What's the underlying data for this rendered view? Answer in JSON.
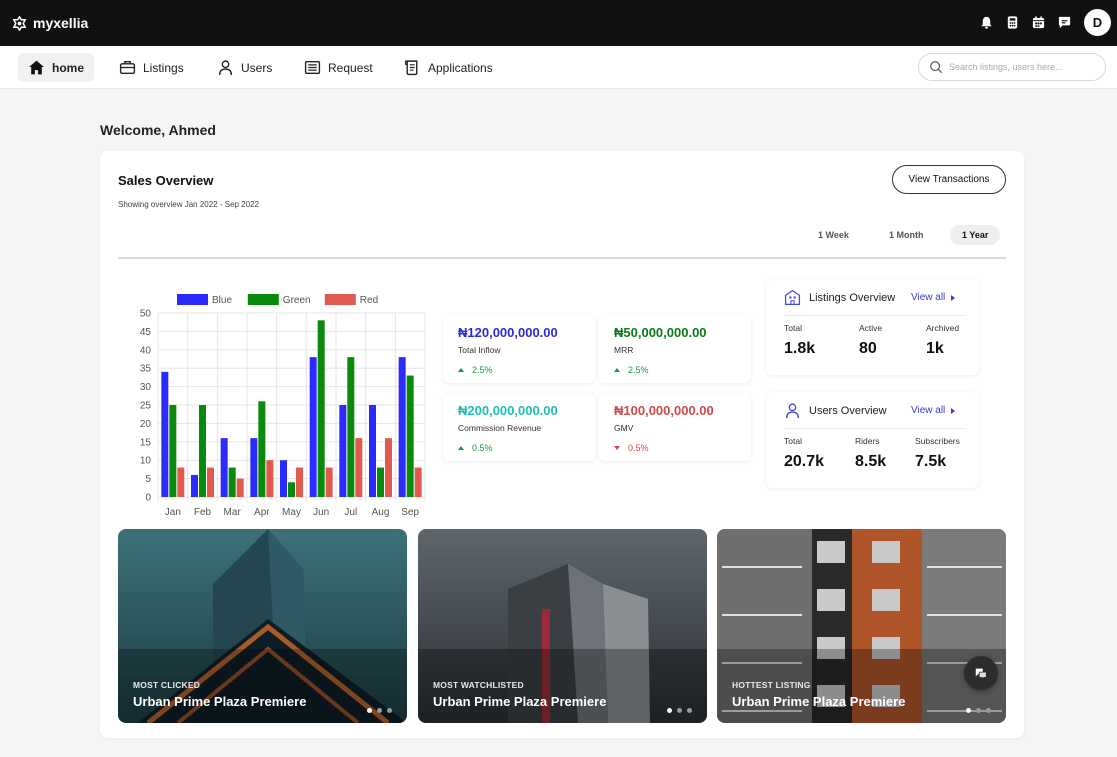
{
  "app": {
    "brand": "myxellia",
    "user_initial": "D"
  },
  "header_icons": [
    "bell-icon",
    "calculator-icon",
    "calendar-icon",
    "chat-icon"
  ],
  "nav": {
    "items": [
      {
        "label": "home",
        "icon": "home-icon",
        "active": true
      },
      {
        "label": "Listings",
        "icon": "briefcase-icon"
      },
      {
        "label": "Users",
        "icon": "user-icon"
      },
      {
        "label": "Request",
        "icon": "list-icon"
      },
      {
        "label": "Applications",
        "icon": "scroll-icon"
      }
    ],
    "search_placeholder": "Search listings, users here..."
  },
  "welcome": "Welcome, Ahmed",
  "sales": {
    "title": "Sales Overview",
    "subtitle": "Showing overview Jan 2022 - Sep 2022",
    "view_button": "View Transactions",
    "periods": [
      "1 Week",
      "1 Month",
      "1 Year"
    ],
    "active_period": "1 Year"
  },
  "chart_data": {
    "type": "bar",
    "categories": [
      "Jan",
      "Feb",
      "Mar",
      "Apr",
      "May",
      "Jun",
      "Jul",
      "Aug",
      "Sep"
    ],
    "series": [
      {
        "name": "Blue",
        "color": "#2b2bff",
        "values": [
          34,
          6,
          16,
          16,
          10,
          38,
          25,
          25,
          38
        ]
      },
      {
        "name": "Green",
        "color": "#0a8a0a",
        "values": [
          25,
          25,
          8,
          26,
          4,
          48,
          38,
          8,
          33
        ]
      },
      {
        "name": "Red",
        "color": "#e05a50",
        "values": [
          8,
          8,
          5,
          10,
          8,
          8,
          16,
          16,
          8
        ]
      }
    ],
    "yticks": [
      "0",
      "5",
      "10",
      "15",
      "20",
      "25",
      "30",
      "35",
      "40",
      "45",
      "50"
    ],
    "ylim": [
      0,
      50
    ],
    "legend": "top",
    "grid": true
  },
  "stats": [
    {
      "value": "₦120,000,000.00",
      "label": "Total Inflow",
      "change": "2.5%",
      "trend": "up",
      "color": "#2b2bdb"
    },
    {
      "value": "₦50,000,000.00",
      "label": "MRR",
      "change": "2.5%",
      "trend": "up",
      "color": "#0a7a1a"
    },
    {
      "value": "₦200,000,000.00",
      "label": "Commission Revenue",
      "change": "0.5%",
      "trend": "up",
      "color": "#1fbfb0"
    },
    {
      "value": "₦100,000,000.00",
      "label": "GMV",
      "change": "0.5%",
      "trend": "down",
      "color": "#d24a4a"
    }
  ],
  "listings_overview": {
    "title": "Listings Overview",
    "link": "View all",
    "cols": [
      {
        "k": "Total",
        "v": "1.8k"
      },
      {
        "k": "Active",
        "v": "80"
      },
      {
        "k": "Archived",
        "v": "1k"
      }
    ]
  },
  "users_overview": {
    "title": "Users Overview",
    "link": "View all",
    "cols": [
      {
        "k": "Total",
        "v": "20.7k"
      },
      {
        "k": "Riders",
        "v": "8.5k"
      },
      {
        "k": "Subscribers",
        "v": "7.5k"
      }
    ]
  },
  "listings": [
    {
      "tag": "MOST CLICKED",
      "name": "Urban Prime Plaza Premiere"
    },
    {
      "tag": "MOST WATCHLISTED",
      "name": "Urban Prime Plaza Premiere"
    },
    {
      "tag": "HOTTEST LISTING",
      "name": "Urban Prime Plaza Premiere"
    }
  ]
}
